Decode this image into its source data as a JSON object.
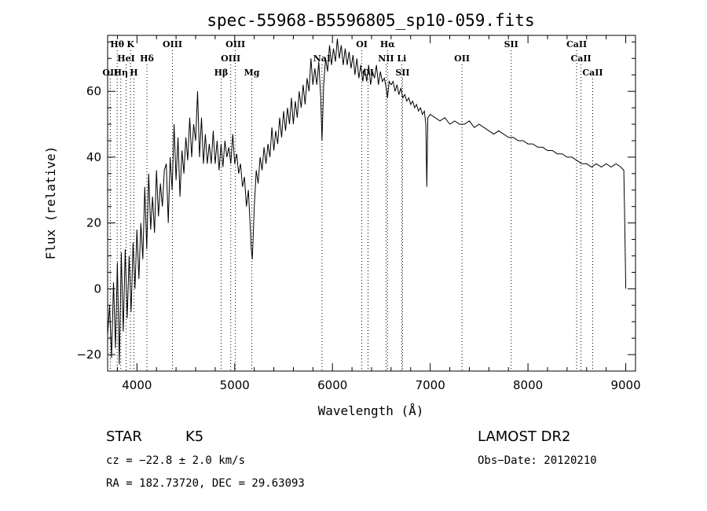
{
  "chart_data": {
    "type": "line",
    "title": "spec-55968-B5596805_sp10-059.fits",
    "xlabel": "Wavelength (Å)",
    "ylabel": "Flux (relative)",
    "xlim": [
      3700,
      9100
    ],
    "ylim": [
      -25,
      77
    ],
    "x_ticks": [
      4000,
      5000,
      6000,
      7000,
      8000,
      9000
    ],
    "y_ticks": [
      -20,
      0,
      20,
      40,
      60
    ],
    "grid": false,
    "series": [
      {
        "points": [
          [
            3700,
            -14
          ],
          [
            3720,
            -5
          ],
          [
            3740,
            -21
          ],
          [
            3760,
            2
          ],
          [
            3780,
            -18
          ],
          [
            3800,
            8
          ],
          [
            3820,
            -23
          ],
          [
            3840,
            11
          ],
          [
            3860,
            -13
          ],
          [
            3880,
            12
          ],
          [
            3900,
            -9
          ],
          [
            3920,
            10
          ],
          [
            3940,
            -7
          ],
          [
            3960,
            14
          ],
          [
            3980,
            0
          ],
          [
            4000,
            18
          ],
          [
            4020,
            3
          ],
          [
            4040,
            20
          ],
          [
            4060,
            9
          ],
          [
            4080,
            31
          ],
          [
            4100,
            12
          ],
          [
            4120,
            35
          ],
          [
            4140,
            18
          ],
          [
            4160,
            28
          ],
          [
            4180,
            17
          ],
          [
            4200,
            36
          ],
          [
            4220,
            22
          ],
          [
            4240,
            32
          ],
          [
            4260,
            25
          ],
          [
            4280,
            36
          ],
          [
            4300,
            38
          ],
          [
            4320,
            20
          ],
          [
            4340,
            40
          ],
          [
            4360,
            30
          ],
          [
            4380,
            50
          ],
          [
            4400,
            33
          ],
          [
            4420,
            46
          ],
          [
            4440,
            28
          ],
          [
            4460,
            42
          ],
          [
            4480,
            35
          ],
          [
            4500,
            46
          ],
          [
            4520,
            39
          ],
          [
            4540,
            52
          ],
          [
            4560,
            40
          ],
          [
            4580,
            50
          ],
          [
            4600,
            45
          ],
          [
            4620,
            60
          ],
          [
            4640,
            40
          ],
          [
            4660,
            52
          ],
          [
            4680,
            38
          ],
          [
            4700,
            47
          ],
          [
            4720,
            38
          ],
          [
            4740,
            44
          ],
          [
            4760,
            38
          ],
          [
            4780,
            48
          ],
          [
            4800,
            38
          ],
          [
            4820,
            45
          ],
          [
            4840,
            36
          ],
          [
            4860,
            44
          ],
          [
            4880,
            37
          ],
          [
            4900,
            45
          ],
          [
            4920,
            40
          ],
          [
            4940,
            43
          ],
          [
            4960,
            38
          ],
          [
            4980,
            47
          ],
          [
            5000,
            38
          ],
          [
            5020,
            41
          ],
          [
            5040,
            35
          ],
          [
            5060,
            38
          ],
          [
            5080,
            31
          ],
          [
            5100,
            34
          ],
          [
            5120,
            25
          ],
          [
            5140,
            30
          ],
          [
            5160,
            18
          ],
          [
            5170,
            12
          ],
          [
            5180,
            9
          ],
          [
            5200,
            25
          ],
          [
            5220,
            36
          ],
          [
            5240,
            32
          ],
          [
            5260,
            40
          ],
          [
            5280,
            36
          ],
          [
            5300,
            43
          ],
          [
            5320,
            38
          ],
          [
            5340,
            44
          ],
          [
            5360,
            40
          ],
          [
            5380,
            49
          ],
          [
            5400,
            42
          ],
          [
            5420,
            48
          ],
          [
            5440,
            44
          ],
          [
            5460,
            52
          ],
          [
            5480,
            46
          ],
          [
            5500,
            54
          ],
          [
            5520,
            48
          ],
          [
            5540,
            55
          ],
          [
            5560,
            50
          ],
          [
            5580,
            58
          ],
          [
            5600,
            50
          ],
          [
            5620,
            57
          ],
          [
            5640,
            52
          ],
          [
            5660,
            60
          ],
          [
            5680,
            55
          ],
          [
            5700,
            62
          ],
          [
            5720,
            56
          ],
          [
            5740,
            64
          ],
          [
            5760,
            60
          ],
          [
            5780,
            70
          ],
          [
            5800,
            62
          ],
          [
            5820,
            67
          ],
          [
            5840,
            62
          ],
          [
            5860,
            69
          ],
          [
            5880,
            58
          ],
          [
            5893,
            45
          ],
          [
            5910,
            62
          ],
          [
            5930,
            70
          ],
          [
            5950,
            66
          ],
          [
            5970,
            74
          ],
          [
            5990,
            68
          ],
          [
            6010,
            73
          ],
          [
            6030,
            69
          ],
          [
            6050,
            76
          ],
          [
            6070,
            70
          ],
          [
            6090,
            74
          ],
          [
            6110,
            68
          ],
          [
            6130,
            73
          ],
          [
            6150,
            68
          ],
          [
            6170,
            72
          ],
          [
            6190,
            67
          ],
          [
            6210,
            71
          ],
          [
            6230,
            65
          ],
          [
            6250,
            70
          ],
          [
            6270,
            64
          ],
          [
            6290,
            68
          ],
          [
            6310,
            63
          ],
          [
            6330,
            67
          ],
          [
            6350,
            63
          ],
          [
            6370,
            68
          ],
          [
            6390,
            62
          ],
          [
            6410,
            66
          ],
          [
            6430,
            64
          ],
          [
            6450,
            68
          ],
          [
            6470,
            62
          ],
          [
            6490,
            66
          ],
          [
            6510,
            63
          ],
          [
            6530,
            64
          ],
          [
            6550,
            61
          ],
          [
            6563,
            58
          ],
          [
            6580,
            63
          ],
          [
            6600,
            62
          ],
          [
            6620,
            63
          ],
          [
            6640,
            60
          ],
          [
            6660,
            62
          ],
          [
            6680,
            59
          ],
          [
            6700,
            61
          ],
          [
            6720,
            58
          ],
          [
            6740,
            59
          ],
          [
            6760,
            57
          ],
          [
            6780,
            58
          ],
          [
            6800,
            56
          ],
          [
            6820,
            57
          ],
          [
            6840,
            55
          ],
          [
            6860,
            56
          ],
          [
            6880,
            54
          ],
          [
            6900,
            55
          ],
          [
            6920,
            53
          ],
          [
            6940,
            54
          ],
          [
            6955,
            50
          ],
          [
            6965,
            31
          ],
          [
            6975,
            52
          ],
          [
            7000,
            53
          ],
          [
            7050,
            52
          ],
          [
            7100,
            51
          ],
          [
            7150,
            52
          ],
          [
            7200,
            50
          ],
          [
            7250,
            51
          ],
          [
            7300,
            50
          ],
          [
            7350,
            50
          ],
          [
            7400,
            51
          ],
          [
            7450,
            49
          ],
          [
            7500,
            50
          ],
          [
            7550,
            49
          ],
          [
            7600,
            48
          ],
          [
            7650,
            47
          ],
          [
            7700,
            48
          ],
          [
            7750,
            47
          ],
          [
            7800,
            46
          ],
          [
            7850,
            46
          ],
          [
            7900,
            45
          ],
          [
            7950,
            45
          ],
          [
            8000,
            44
          ],
          [
            8050,
            44
          ],
          [
            8100,
            43
          ],
          [
            8150,
            43
          ],
          [
            8200,
            42
          ],
          [
            8250,
            42
          ],
          [
            8300,
            41
          ],
          [
            8350,
            41
          ],
          [
            8400,
            40
          ],
          [
            8450,
            40
          ],
          [
            8500,
            39
          ],
          [
            8550,
            38
          ],
          [
            8600,
            38
          ],
          [
            8650,
            37
          ],
          [
            8700,
            38
          ],
          [
            8750,
            37
          ],
          [
            8800,
            38
          ],
          [
            8850,
            37
          ],
          [
            8900,
            38
          ],
          [
            8950,
            37
          ],
          [
            8980,
            36
          ],
          [
            8990,
            20
          ],
          [
            9000,
            0
          ]
        ]
      }
    ],
    "line_markers": [
      {
        "label": "Hθ",
        "x": 3798,
        "row": 1
      },
      {
        "label": "K",
        "x": 3934,
        "row": 1
      },
      {
        "label": "HeI",
        "x": 3889,
        "row": 2
      },
      {
        "label": "Hδ",
        "x": 4102,
        "row": 2
      },
      {
        "label": "OII",
        "x": 3727,
        "row": 3
      },
      {
        "label": "Hη",
        "x": 3835,
        "row": 3
      },
      {
        "label": "H",
        "x": 3969,
        "row": 3
      },
      {
        "label": "OIII",
        "x": 4363,
        "row": 1
      },
      {
        "label": "Hβ",
        "x": 4861,
        "row": 3
      },
      {
        "label": "OIII",
        "x": 5007,
        "row": 1
      },
      {
        "label": "OIII",
        "x": 4959,
        "row": 2
      },
      {
        "label": "Mg",
        "x": 5175,
        "row": 3
      },
      {
        "label": "OI",
        "x": 6300,
        "row": 1
      },
      {
        "label": "Hα",
        "x": 6563,
        "row": 1
      },
      {
        "label": "NII",
        "x": 6548,
        "row": 2
      },
      {
        "label": "Li",
        "x": 6708,
        "row": 2
      },
      {
        "label": "OI",
        "x": 6364,
        "row": 3
      },
      {
        "label": "SII",
        "x": 6717,
        "row": 3
      },
      {
        "label": "OII",
        "x": 7325,
        "row": 2
      },
      {
        "label": "SII",
        "x": 7828,
        "row": 1
      },
      {
        "label": "CaII",
        "x": 8498,
        "row": 1
      },
      {
        "label": "CaII",
        "x": 8542,
        "row": 2
      },
      {
        "label": "CaII",
        "x": 8662,
        "row": 3
      },
      {
        "label": "NaI",
        "x": 5893,
        "row": 2
      }
    ]
  },
  "info": {
    "class_label": "STAR",
    "subclass_label": "K5",
    "survey_label": "LAMOST DR2",
    "cz_text": "cz = −22.8 ± 2.0 km/s",
    "obsdate_text": "Obs−Date: 20120210",
    "radec_text": "RA = 182.73720, DEC =  29.63093"
  }
}
